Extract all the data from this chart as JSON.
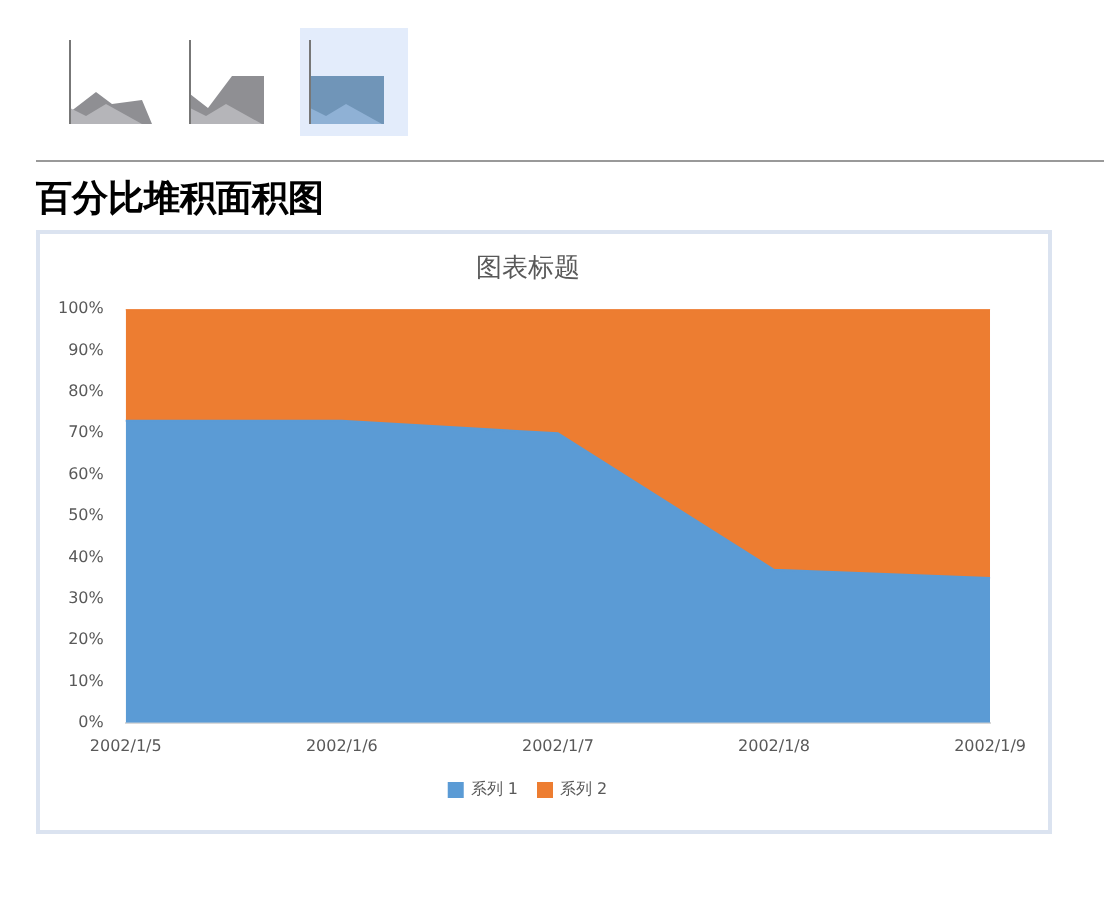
{
  "chart_data": {
    "type": "area",
    "title": "百分比堆积面积图",
    "subtitle": "图表标题",
    "categories": [
      "2002/1/5",
      "2002/1/6",
      "2002/1/7",
      "2002/1/8",
      "2002/1/9"
    ],
    "stacked": true,
    "series": [
      {
        "name": "系列 1",
        "color": "#5b9bd5",
        "values": [
          73,
          73,
          70,
          37,
          35
        ]
      },
      {
        "name": "系列 2",
        "color": "#ed7d31",
        "values": [
          27,
          27,
          30,
          63,
          65
        ]
      }
    ],
    "ylim": [
      0,
      100
    ],
    "yticks": [
      {
        "value": 0,
        "label": "0%"
      },
      {
        "value": 10,
        "label": "10%"
      },
      {
        "value": 20,
        "label": "20%"
      },
      {
        "value": 30,
        "label": "30%"
      },
      {
        "value": 40,
        "label": "40%"
      },
      {
        "value": 50,
        "label": "50%"
      },
      {
        "value": 60,
        "label": "60%"
      },
      {
        "value": 70,
        "label": "70%"
      },
      {
        "value": 80,
        "label": "80%"
      },
      {
        "value": 90,
        "label": "90%"
      },
      {
        "value": 100,
        "label": "100%"
      }
    ],
    "grid": false,
    "legend": "bottom"
  }
}
